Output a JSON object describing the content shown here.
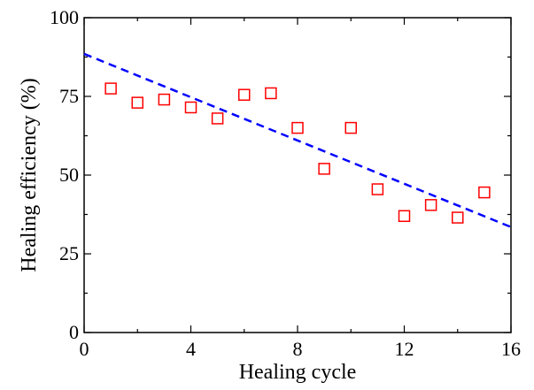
{
  "chart_data": {
    "type": "scatter",
    "x_label": "Healing cycle",
    "y_label": "Healing efficiency (%)",
    "x": [
      1,
      2,
      3,
      4,
      5,
      6,
      7,
      8,
      9,
      10,
      11,
      12,
      13,
      14,
      15
    ],
    "values": [
      77.5,
      73,
      74,
      71.5,
      68,
      75.5,
      76,
      65,
      52,
      65,
      45.5,
      37,
      40.5,
      36.5,
      44.5
    ],
    "color": "#ff0000",
    "trend_line": {
      "x": [
        0,
        16
      ],
      "values": [
        88.5,
        33.5
      ],
      "color": "#0000ff",
      "dashed": true
    },
    "xlim": [
      0,
      16
    ],
    "xticks": [
      0,
      4,
      8,
      12,
      16
    ],
    "xminorticks": [
      2,
      6,
      10,
      14
    ],
    "ylim": [
      0,
      100
    ],
    "yticks": [
      0,
      25,
      50,
      75,
      100
    ],
    "yminorticks": [
      12.5,
      37.5,
      62.5,
      87.5
    ],
    "grid": false
  }
}
